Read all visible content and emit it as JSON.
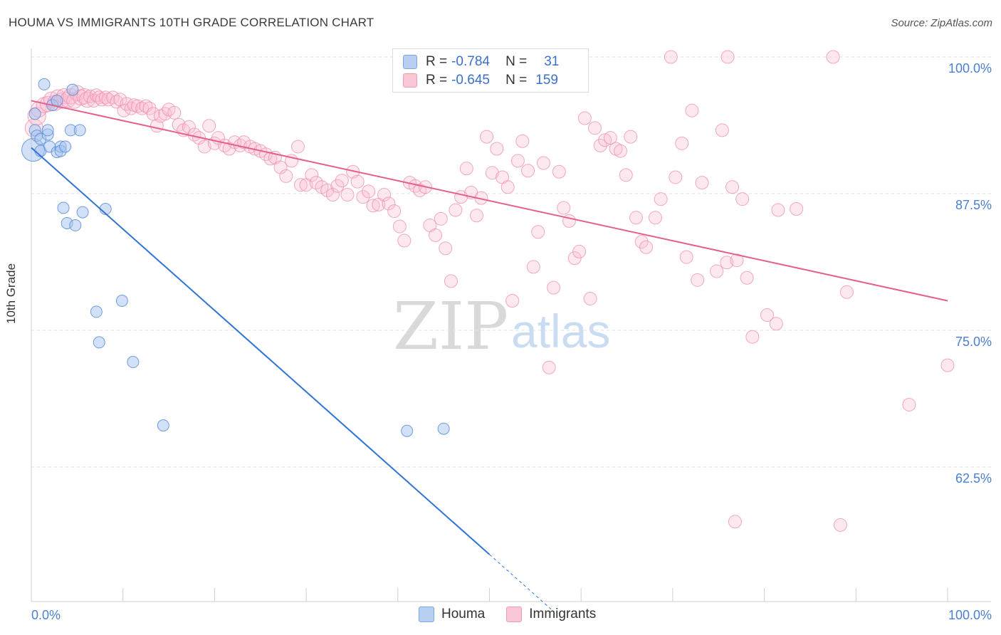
{
  "header": {
    "title": "HOUMA VS IMMIGRANTS 10TH GRADE CORRELATION CHART",
    "source": "Source: ZipAtlas.com"
  },
  "watermark": {
    "zip": "ZIP",
    "atlas": "atlas"
  },
  "legend": {
    "rows": [
      {
        "r_label": "R =",
        "r_value": "-0.784",
        "n_label": "N =",
        "n_value": "31",
        "color": "#b7cff1"
      },
      {
        "r_label": "R =",
        "r_value": "-0.645",
        "n_label": "N =",
        "n_value": "159",
        "color": "#f9c6d6"
      }
    ]
  },
  "bottom_legend": {
    "houma": "Houma",
    "immigrants": "Immigrants"
  },
  "colors": {
    "houma": "#5b8fd8",
    "houma_line": "#2f74d4",
    "immigrants": "#ef8fb0",
    "immigrants_line": "#e55f8e",
    "tick_label": "#4a7fd1"
  },
  "chart_data": {
    "type": "scatter",
    "title": "HOUMA VS IMMIGRANTS 10TH GRADE CORRELATION CHART",
    "xlabel": "",
    "ylabel": "10th Grade",
    "xlim": [
      0,
      100
    ],
    "ylim": [
      50,
      101
    ],
    "x_tick_labels": [
      "0.0%",
      "100.0%"
    ],
    "y_ticks": [
      {
        "value": 62.5,
        "label": "62.5%"
      },
      {
        "value": 75.0,
        "label": "75.0%"
      },
      {
        "value": 87.5,
        "label": "87.5%"
      },
      {
        "value": 100.0,
        "label": "100.0%"
      }
    ],
    "grid": true,
    "legend_position": "top-center",
    "series": [
      {
        "name": "Houma",
        "regression": {
          "x0": 0,
          "y0": 91.7,
          "x1": 50,
          "y1": 54.5,
          "dashed_to_x": 57
        },
        "points": [
          [
            0.2,
            91.5,
            2.0
          ],
          [
            0.4,
            94.8,
            1
          ],
          [
            0.4,
            93.3,
            1
          ],
          [
            0.6,
            92.8,
            1
          ],
          [
            1.0,
            91.4,
            1
          ],
          [
            1.0,
            92.5,
            1
          ],
          [
            1.4,
            97.5,
            1
          ],
          [
            1.8,
            92.9,
            1
          ],
          [
            1.8,
            93.3,
            1
          ],
          [
            2.0,
            91.8,
            1
          ],
          [
            2.3,
            95.6,
            1
          ],
          [
            2.8,
            96.0,
            1
          ],
          [
            2.8,
            91.3,
            1
          ],
          [
            3.2,
            91.8,
            1
          ],
          [
            3.2,
            91.4,
            1
          ],
          [
            3.7,
            91.8,
            1
          ],
          [
            4.3,
            93.3,
            1
          ],
          [
            4.5,
            97.0,
            1
          ],
          [
            5.3,
            93.3,
            1
          ],
          [
            3.5,
            86.2,
            1
          ],
          [
            3.9,
            84.8,
            1
          ],
          [
            4.8,
            84.6,
            1
          ],
          [
            5.6,
            85.8,
            1
          ],
          [
            8.1,
            86.1,
            1
          ],
          [
            7.1,
            76.7,
            1
          ],
          [
            7.4,
            73.9,
            1
          ],
          [
            9.9,
            77.7,
            1
          ],
          [
            11.1,
            72.1,
            1
          ],
          [
            14.4,
            66.3,
            1
          ],
          [
            41.0,
            65.8,
            1
          ],
          [
            45.0,
            66.0,
            1
          ]
        ]
      },
      {
        "name": "Immigrants",
        "regression": {
          "x0": 0,
          "y0": 96.0,
          "x1": 100,
          "y1": 77.7
        },
        "points": [
          [
            0.3,
            93.5,
            1.4
          ],
          [
            0.6,
            94.6,
            1.4
          ],
          [
            0.8,
            95.2,
            1.2
          ],
          [
            1.4,
            95.6,
            1.2
          ],
          [
            1.8,
            95.7,
            1.2
          ],
          [
            2.2,
            96.1,
            1.2
          ],
          [
            2.6,
            95.8,
            1.2
          ],
          [
            2.9,
            96.3,
            1.2
          ],
          [
            3.3,
            96.0,
            1.2
          ],
          [
            3.6,
            96.4,
            1.2
          ],
          [
            4.0,
            96.1,
            1.2
          ],
          [
            4.3,
            96.4,
            1.2
          ],
          [
            4.7,
            96.0,
            1.2
          ],
          [
            5.0,
            96.7,
            1.2
          ],
          [
            5.4,
            96.3,
            1.2
          ],
          [
            5.8,
            96.4,
            1.2
          ],
          [
            6.1,
            96.1,
            1.2
          ],
          [
            6.4,
            96.4,
            1
          ],
          [
            6.8,
            96.0,
            1
          ],
          [
            7.1,
            96.5,
            1
          ],
          [
            7.4,
            96.3,
            1
          ],
          [
            7.7,
            96.1,
            1
          ],
          [
            8.1,
            96.3,
            1
          ],
          [
            8.4,
            96.1,
            1
          ],
          [
            8.9,
            96.3,
            1
          ],
          [
            9.3,
            95.9,
            1
          ],
          [
            9.7,
            96.1,
            1
          ],
          [
            10.1,
            95.1,
            1
          ],
          [
            10.4,
            95.7,
            1
          ],
          [
            10.9,
            95.3,
            1
          ],
          [
            11.2,
            95.6,
            1
          ],
          [
            11.6,
            95.5,
            1
          ],
          [
            12.1,
            95.3,
            1
          ],
          [
            12.5,
            95.5,
            1
          ],
          [
            12.9,
            95.3,
            1
          ],
          [
            13.3,
            94.8,
            1
          ],
          [
            13.7,
            93.7,
            1
          ],
          [
            14.1,
            94.6,
            1
          ],
          [
            14.6,
            94.8,
            1
          ],
          [
            15.0,
            95.2,
            1
          ],
          [
            15.6,
            94.9,
            1
          ],
          [
            16.1,
            93.8,
            1
          ],
          [
            16.6,
            93.3,
            1
          ],
          [
            17.2,
            93.6,
            1
          ],
          [
            17.8,
            92.9,
            1
          ],
          [
            18.3,
            92.6,
            1
          ],
          [
            18.9,
            91.8,
            1
          ],
          [
            19.4,
            93.7,
            1
          ],
          [
            20.0,
            92.1,
            1
          ],
          [
            20.4,
            92.6,
            1
          ],
          [
            21.1,
            91.9,
            1
          ],
          [
            21.6,
            91.6,
            1
          ],
          [
            22.2,
            92.2,
            1
          ],
          [
            22.8,
            91.9,
            1
          ],
          [
            23.2,
            92.2,
            1
          ],
          [
            23.9,
            91.8,
            1
          ],
          [
            24.4,
            91.6,
            1
          ],
          [
            25.0,
            91.4,
            1
          ],
          [
            25.6,
            91.1,
            1
          ],
          [
            26.1,
            90.7,
            1
          ],
          [
            26.6,
            90.8,
            1
          ],
          [
            27.2,
            89.9,
            1
          ],
          [
            27.8,
            89.1,
            1
          ],
          [
            28.4,
            90.5,
            1
          ],
          [
            29.1,
            91.8,
            1
          ],
          [
            29.4,
            88.3,
            1
          ],
          [
            30.0,
            88.3,
            1
          ],
          [
            30.6,
            89.2,
            1
          ],
          [
            31.1,
            88.5,
            1
          ],
          [
            31.7,
            88.1,
            1
          ],
          [
            32.3,
            87.8,
            1
          ],
          [
            32.9,
            87.4,
            1
          ],
          [
            33.4,
            88.2,
            1
          ],
          [
            33.9,
            88.7,
            1
          ],
          [
            34.5,
            87.4,
            1
          ],
          [
            35.1,
            89.5,
            1
          ],
          [
            35.6,
            88.6,
            1
          ],
          [
            36.2,
            87.2,
            1
          ],
          [
            36.8,
            87.7,
            1
          ],
          [
            37.3,
            86.4,
            1
          ],
          [
            37.9,
            86.5,
            1
          ],
          [
            38.5,
            87.4,
            1
          ],
          [
            39.0,
            86.6,
            1
          ],
          [
            39.6,
            85.9,
            1
          ],
          [
            40.2,
            84.5,
            1
          ],
          [
            40.7,
            83.2,
            1
          ],
          [
            41.3,
            88.5,
            1
          ],
          [
            41.9,
            88.2,
            1
          ],
          [
            42.4,
            87.8,
            1
          ],
          [
            43.0,
            88.1,
            1
          ],
          [
            43.5,
            84.6,
            1
          ],
          [
            44.1,
            83.7,
            1
          ],
          [
            44.7,
            85.2,
            1
          ],
          [
            45.2,
            82.5,
            1
          ],
          [
            45.8,
            79.5,
            1
          ],
          [
            46.3,
            86.0,
            1
          ],
          [
            46.9,
            87.2,
            1
          ],
          [
            47.5,
            89.8,
            1
          ],
          [
            48.0,
            87.6,
            1
          ],
          [
            48.6,
            85.5,
            1
          ],
          [
            49.1,
            87.1,
            1
          ],
          [
            49.7,
            92.7,
            1
          ],
          [
            50.3,
            89.4,
            1
          ],
          [
            50.8,
            91.6,
            1
          ],
          [
            51.4,
            89.0,
            1
          ],
          [
            52.0,
            88.1,
            1
          ],
          [
            52.5,
            77.7,
            1
          ],
          [
            53.1,
            90.5,
            1
          ],
          [
            53.6,
            92.3,
            1
          ],
          [
            54.2,
            89.6,
            1
          ],
          [
            54.8,
            80.8,
            1
          ],
          [
            55.3,
            84.0,
            1
          ],
          [
            55.9,
            90.3,
            1
          ],
          [
            56.5,
            71.6,
            1
          ],
          [
            57.0,
            78.9,
            1
          ],
          [
            57.6,
            89.5,
            1
          ],
          [
            58.1,
            86.2,
            1
          ],
          [
            58.7,
            85.0,
            1
          ],
          [
            59.3,
            81.6,
            1
          ],
          [
            59.8,
            82.2,
            1
          ],
          [
            60.4,
            94.4,
            1
          ],
          [
            61.0,
            77.9,
            1
          ],
          [
            61.5,
            93.5,
            1
          ],
          [
            62.1,
            91.9,
            1
          ],
          [
            62.6,
            92.4,
            1
          ],
          [
            63.2,
            92.6,
            1
          ],
          [
            63.8,
            91.6,
            1
          ],
          [
            64.3,
            91.4,
            1
          ],
          [
            64.9,
            89.2,
            1
          ],
          [
            65.4,
            92.7,
            1
          ],
          [
            66.0,
            85.3,
            1
          ],
          [
            66.6,
            83.1,
            1
          ],
          [
            67.1,
            82.6,
            1
          ],
          [
            68.1,
            85.3,
            1
          ],
          [
            68.7,
            87.0,
            1
          ],
          [
            69.8,
            100.0,
            1
          ],
          [
            70.3,
            89.0,
            1
          ],
          [
            71.0,
            92.1,
            1
          ],
          [
            71.5,
            81.7,
            1
          ],
          [
            72.1,
            95.1,
            1
          ],
          [
            72.7,
            79.6,
            1
          ],
          [
            73.2,
            88.5,
            1
          ],
          [
            74.8,
            80.4,
            1
          ],
          [
            75.4,
            93.3,
            1
          ],
          [
            75.9,
            81.2,
            1
          ],
          [
            76.5,
            88.1,
            1
          ],
          [
            77.0,
            81.4,
            1
          ],
          [
            77.6,
            87.0,
            1
          ],
          [
            78.1,
            79.8,
            1
          ],
          [
            78.7,
            74.4,
            1
          ],
          [
            80.3,
            76.4,
            1
          ],
          [
            81.3,
            75.6,
            1
          ],
          [
            81.5,
            86.0,
            1
          ],
          [
            83.5,
            86.1,
            1
          ],
          [
            76.0,
            100.0,
            1
          ],
          [
            87.5,
            100.0,
            1
          ],
          [
            89.0,
            78.5,
            1
          ],
          [
            95.8,
            68.2,
            1
          ],
          [
            100.0,
            71.8,
            1
          ],
          [
            76.8,
            57.5,
            1
          ],
          [
            88.3,
            57.2,
            1
          ]
        ]
      }
    ]
  }
}
